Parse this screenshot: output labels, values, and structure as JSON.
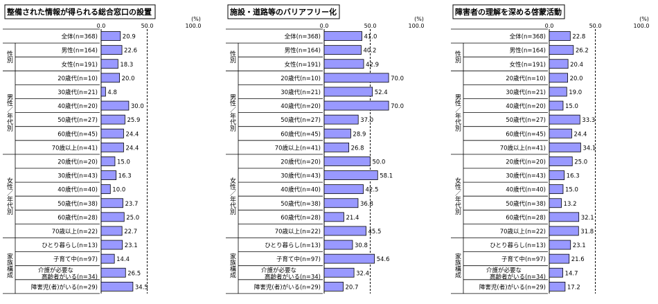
{
  "chart_data": [
    {
      "type": "bar",
      "title": "整備された情報が得られる総合窓口の設置",
      "unit": "(%)",
      "xlim": [
        0,
        100
      ],
      "ticks": [
        "0.0",
        "50.0",
        "100.0"
      ],
      "series": [
        {
          "label": "全体(n=368)",
          "value": 20.9
        },
        {
          "label": "男性(n=164)",
          "value": 22.6
        },
        {
          "label": "女性(n=191)",
          "value": 18.3
        },
        {
          "label": "20歳代(n=10)",
          "value": 20.0
        },
        {
          "label": "30歳代(n=21)",
          "value": 4.8
        },
        {
          "label": "40歳代(n=20)",
          "value": 30.0
        },
        {
          "label": "50歳代(n=27)",
          "value": 25.9
        },
        {
          "label": "60歳代(n=45)",
          "value": 24.4
        },
        {
          "label": "70歳以上(n=41)",
          "value": 24.4
        },
        {
          "label": "20歳代(n=20)",
          "value": 15.0
        },
        {
          "label": "30歳代(n=43)",
          "value": 16.3
        },
        {
          "label": "40歳代(n=40)",
          "value": 10.0
        },
        {
          "label": "50歳代(n=38)",
          "value": 23.7
        },
        {
          "label": "60歳代(n=28)",
          "value": 25.0
        },
        {
          "label": "70歳以上(n=22)",
          "value": 22.7
        },
        {
          "label": "ひとり暮らし(n=13)",
          "value": 23.1
        },
        {
          "label": "子育て中(n=97)",
          "value": 14.4
        },
        {
          "label": "介護が必要な高齢者がいる(n=34)",
          "value": 26.5
        },
        {
          "label": "障害児(者)がいる(n=29)",
          "value": 34.5
        }
      ]
    },
    {
      "type": "bar",
      "title": "施設・道路等のバリアフリー化",
      "unit": "(%)",
      "xlim": [
        0,
        100
      ],
      "ticks": [
        "0.0",
        "50.0",
        "100.0"
      ],
      "series": [
        {
          "label": "全体(n=368)",
          "value": 41.0
        },
        {
          "label": "男性(n=164)",
          "value": 40.2
        },
        {
          "label": "女性(n=191)",
          "value": 42.9
        },
        {
          "label": "20歳代(n=10)",
          "value": 70.0
        },
        {
          "label": "30歳代(n=21)",
          "value": 52.4
        },
        {
          "label": "40歳代(n=20)",
          "value": 70.0
        },
        {
          "label": "50歳代(n=27)",
          "value": 37.0
        },
        {
          "label": "60歳代(n=45)",
          "value": 28.9
        },
        {
          "label": "70歳以上(n=41)",
          "value": 26.8
        },
        {
          "label": "20歳代(n=20)",
          "value": 50.0
        },
        {
          "label": "30歳代(n=43)",
          "value": 58.1
        },
        {
          "label": "40歳代(n=40)",
          "value": 42.5
        },
        {
          "label": "50歳代(n=38)",
          "value": 36.8
        },
        {
          "label": "60歳代(n=28)",
          "value": 21.4
        },
        {
          "label": "70歳以上(n=22)",
          "value": 45.5
        },
        {
          "label": "ひとり暮らし(n=13)",
          "value": 30.8
        },
        {
          "label": "子育て中(n=97)",
          "value": 54.6
        },
        {
          "label": "介護が必要な高齢者がいる(n=34)",
          "value": 32.4
        },
        {
          "label": "障害児(者)がいる(n=29)",
          "value": 20.7
        }
      ]
    },
    {
      "type": "bar",
      "title": "障害者の理解を深める啓蒙活動",
      "unit": "(%)",
      "xlim": [
        0,
        100
      ],
      "ticks": [
        "0.0",
        "50.0",
        "100.0"
      ],
      "series": [
        {
          "label": "全体(n=368)",
          "value": 22.8
        },
        {
          "label": "男性(n=164)",
          "value": 26.2
        },
        {
          "label": "女性(n=191)",
          "value": 20.4
        },
        {
          "label": "20歳代(n=10)",
          "value": 20.0
        },
        {
          "label": "30歳代(n=21)",
          "value": 19.0
        },
        {
          "label": "40歳代(n=20)",
          "value": 15.0
        },
        {
          "label": "50歳代(n=27)",
          "value": 33.3
        },
        {
          "label": "60歳代(n=45)",
          "value": 24.4
        },
        {
          "label": "70歳以上(n=41)",
          "value": 34.1
        },
        {
          "label": "20歳代(n=20)",
          "value": 25.0
        },
        {
          "label": "30歳代(n=43)",
          "value": 16.3
        },
        {
          "label": "40歳代(n=40)",
          "value": 15.0
        },
        {
          "label": "50歳代(n=38)",
          "value": 13.2
        },
        {
          "label": "60歳代(n=28)",
          "value": 32.1
        },
        {
          "label": "70歳以上(n=22)",
          "value": 31.8
        },
        {
          "label": "ひとり暮らし(n=13)",
          "value": 23.1
        },
        {
          "label": "子育て中(n=97)",
          "value": 21.6
        },
        {
          "label": "介護が必要な高齢者がいる(n=34)",
          "value": 14.7
        },
        {
          "label": "障害児(者)がいる(n=29)",
          "value": 17.2
        }
      ]
    }
  ],
  "groups": [
    {
      "label": "性別",
      "start": 1,
      "end": 2
    },
    {
      "label": "男性／年代別",
      "start": 3,
      "end": 8
    },
    {
      "label": "女性／年代別",
      "start": 9,
      "end": 14
    },
    {
      "label": "家族構成",
      "start": 15,
      "end": 18
    }
  ],
  "colors": {
    "bar_fill": "#9999ff",
    "bar_stroke": "#000000",
    "reference_line": "#000000"
  },
  "reference_value": 50
}
